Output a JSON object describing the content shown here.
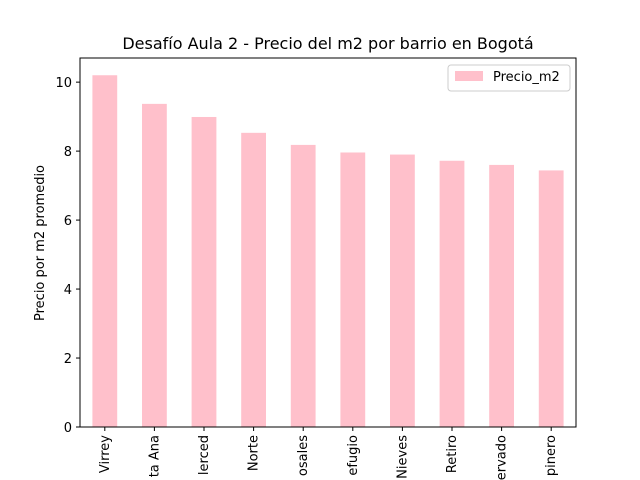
{
  "chart_data": {
    "type": "bar",
    "title": "Desafío Aula 2 - Precio del m2 por barrio en Bogotá",
    "xlabel": "",
    "ylabel": "Precio por m2 promedio",
    "categories": [
      "Virrey",
      "ta Ana",
      "lerced",
      "Norte",
      "osales",
      "efugio",
      "Nieves",
      "Retiro",
      "ervado",
      "pinero"
    ],
    "series": [
      {
        "name": "Precio_m2",
        "color": "#ffc0cb",
        "values": [
          10.2,
          9.37,
          8.99,
          8.53,
          8.18,
          7.96,
          7.9,
          7.72,
          7.6,
          7.44
        ]
      }
    ],
    "ylim": [
      0,
      10.7
    ],
    "yticks": [
      0,
      2,
      4,
      6,
      8,
      10
    ],
    "grid": false,
    "legend_position": "top-right"
  }
}
